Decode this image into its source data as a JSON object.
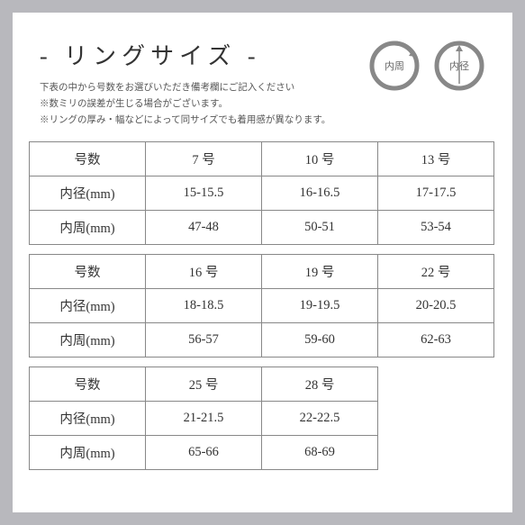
{
  "title": "-  リングサイズ  -",
  "notes": [
    "下表の中から号数をお選びいただき備考欄にご記入ください",
    "※数ミリの誤差が生じる場合がございます。",
    "※リングの厚み・幅などによって同サイズでも着用感が異なります。"
  ],
  "diagram_labels": {
    "circumference": "内周",
    "diameter": "内径"
  },
  "row_headers": {
    "size": "号数",
    "diameter": "内径(mm)",
    "circumference": "内周(mm)"
  },
  "groups": [
    {
      "cols": 3,
      "sizes": [
        "7 号",
        "10 号",
        "13 号"
      ],
      "diameters": [
        "15-15.5",
        "16-16.5",
        "17-17.5"
      ],
      "circumferences": [
        "47-48",
        "50-51",
        "53-54"
      ]
    },
    {
      "cols": 3,
      "sizes": [
        "16 号",
        "19 号",
        "22 号"
      ],
      "diameters": [
        "18-18.5",
        "19-19.5",
        "20-20.5"
      ],
      "circumferences": [
        "56-57",
        "59-60",
        "62-63"
      ]
    },
    {
      "cols": 2,
      "sizes": [
        "25 号",
        "28 号"
      ],
      "diameters": [
        "21-21.5",
        "22-22.5"
      ],
      "circumferences": [
        "65-66",
        "68-69"
      ]
    }
  ],
  "colors": {
    "page_bg": "#b8b8bd",
    "card_bg": "#ffffff",
    "border": "#888888",
    "text": "#333333",
    "note_text": "#555555",
    "ring_stroke": "#888888"
  }
}
